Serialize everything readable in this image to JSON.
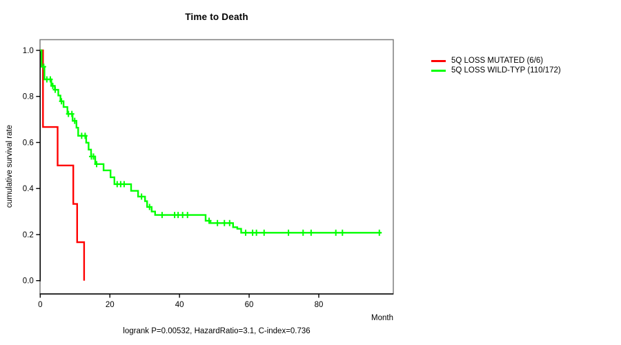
{
  "header": {
    "title": "Time to Death"
  },
  "axes": {
    "x_label": "Month",
    "y_label": "cumulative survival rate",
    "x_ticks": [
      "0",
      "20",
      "40",
      "60",
      "80"
    ],
    "x_tick_values": [
      0,
      20,
      40,
      60,
      80
    ],
    "y_ticks": [
      "0.0",
      "0.2",
      "0.4",
      "0.6",
      "0.8",
      "1.0"
    ],
    "y_tick_values": [
      0,
      0.2,
      0.4,
      0.6,
      0.8,
      1.0
    ]
  },
  "legend": {
    "items": [
      {
        "label": "5Q LOSS MUTATED (6/6)",
        "color": "#ff0000"
      },
      {
        "label": "5Q LOSS WILD-TYP (110/172)",
        "color": "#00ff00"
      }
    ]
  },
  "footer": {
    "stats_line": "logrank P=0.00532, HazardRatio=3.1, C-index=0.736"
  },
  "colors": {
    "mutated": "#ff0000",
    "wildtype": "#00ff00",
    "box": "#7d7d7d",
    "axis": "#000000"
  },
  "chart_data": {
    "type": "line",
    "subtype": "kaplan-meier-step",
    "title": "Time to Death",
    "xlabel": "Month",
    "ylabel": "cumulative survival rate",
    "xlim": [
      0,
      101
    ],
    "ylim": [
      0,
      1
    ],
    "grid": false,
    "legend_position": "top-right-outside",
    "annotation": "logrank P=0.00532, HazardRatio=3.1, C-index=0.736",
    "series": [
      {
        "name": "5Q LOSS MUTATED (6/6)",
        "color": "#ff0000",
        "n_events": 6,
        "n_total": 6,
        "points": [
          [
            0,
            1.0
          ],
          [
            0.8,
            1.0
          ],
          [
            0.8,
            0.667
          ],
          [
            5.0,
            0.667
          ],
          [
            5.0,
            0.5
          ],
          [
            9.5,
            0.5
          ],
          [
            9.5,
            0.333
          ],
          [
            10.6,
            0.333
          ],
          [
            10.6,
            0.167
          ],
          [
            12.6,
            0.167
          ],
          [
            12.6,
            0.0
          ]
        ],
        "censors": []
      },
      {
        "name": "5Q LOSS WILD-TYP (110/172)",
        "color": "#00ff00",
        "n_events": 110,
        "n_total": 172,
        "points": [
          [
            0,
            1.0
          ],
          [
            0.4,
            1.0
          ],
          [
            0.4,
            0.929
          ],
          [
            1.2,
            0.929
          ],
          [
            1.2,
            0.874
          ],
          [
            3.2,
            0.874
          ],
          [
            3.2,
            0.846
          ],
          [
            4.2,
            0.846
          ],
          [
            4.2,
            0.829
          ],
          [
            5.2,
            0.829
          ],
          [
            5.2,
            0.804
          ],
          [
            5.8,
            0.804
          ],
          [
            5.8,
            0.779
          ],
          [
            6.7,
            0.779
          ],
          [
            6.7,
            0.754
          ],
          [
            7.8,
            0.754
          ],
          [
            7.8,
            0.724
          ],
          [
            9.3,
            0.724
          ],
          [
            9.3,
            0.694
          ],
          [
            10.4,
            0.694
          ],
          [
            10.4,
            0.664
          ],
          [
            10.9,
            0.664
          ],
          [
            10.9,
            0.629
          ],
          [
            13.2,
            0.629
          ],
          [
            13.2,
            0.599
          ],
          [
            13.9,
            0.599
          ],
          [
            13.9,
            0.569
          ],
          [
            14.6,
            0.569
          ],
          [
            14.6,
            0.539
          ],
          [
            15.8,
            0.539
          ],
          [
            15.8,
            0.506
          ],
          [
            18.2,
            0.506
          ],
          [
            18.2,
            0.479
          ],
          [
            20.2,
            0.479
          ],
          [
            20.2,
            0.449
          ],
          [
            21.3,
            0.449
          ],
          [
            21.3,
            0.419
          ],
          [
            26.1,
            0.419
          ],
          [
            26.1,
            0.39
          ],
          [
            28.1,
            0.39
          ],
          [
            28.1,
            0.365
          ],
          [
            30.1,
            0.365
          ],
          [
            30.1,
            0.345
          ],
          [
            30.7,
            0.345
          ],
          [
            30.7,
            0.32
          ],
          [
            32.0,
            0.32
          ],
          [
            32.0,
            0.3
          ],
          [
            33.0,
            0.3
          ],
          [
            33.0,
            0.285
          ],
          [
            47.5,
            0.285
          ],
          [
            47.5,
            0.26
          ],
          [
            48.9,
            0.26
          ],
          [
            48.9,
            0.25
          ],
          [
            55.4,
            0.25
          ],
          [
            55.4,
            0.232
          ],
          [
            56.6,
            0.232
          ],
          [
            56.6,
            0.225
          ],
          [
            57.7,
            0.225
          ],
          [
            57.7,
            0.208
          ],
          [
            98.0,
            0.208
          ]
        ],
        "censors": [
          [
            1.0,
            0.929
          ],
          [
            1.9,
            0.874
          ],
          [
            2.9,
            0.874
          ],
          [
            3.6,
            0.846
          ],
          [
            4.3,
            0.829
          ],
          [
            6.1,
            0.779
          ],
          [
            8.1,
            0.724
          ],
          [
            9.1,
            0.724
          ],
          [
            9.9,
            0.694
          ],
          [
            11.9,
            0.629
          ],
          [
            12.9,
            0.629
          ],
          [
            14.7,
            0.539
          ],
          [
            15.3,
            0.539
          ],
          [
            16.2,
            0.506
          ],
          [
            22.1,
            0.419
          ],
          [
            23.1,
            0.419
          ],
          [
            24.1,
            0.419
          ],
          [
            29.1,
            0.365
          ],
          [
            31.4,
            0.32
          ],
          [
            35.0,
            0.285
          ],
          [
            38.6,
            0.285
          ],
          [
            39.6,
            0.285
          ],
          [
            40.9,
            0.285
          ],
          [
            42.3,
            0.285
          ],
          [
            48.5,
            0.26
          ],
          [
            50.9,
            0.25
          ],
          [
            52.9,
            0.25
          ],
          [
            54.4,
            0.25
          ],
          [
            59.0,
            0.208
          ],
          [
            61.0,
            0.208
          ],
          [
            62.1,
            0.208
          ],
          [
            64.3,
            0.208
          ],
          [
            71.3,
            0.208
          ],
          [
            75.5,
            0.208
          ],
          [
            77.8,
            0.208
          ],
          [
            84.9,
            0.208
          ],
          [
            86.8,
            0.208
          ],
          [
            97.4,
            0.208
          ]
        ]
      }
    ]
  }
}
